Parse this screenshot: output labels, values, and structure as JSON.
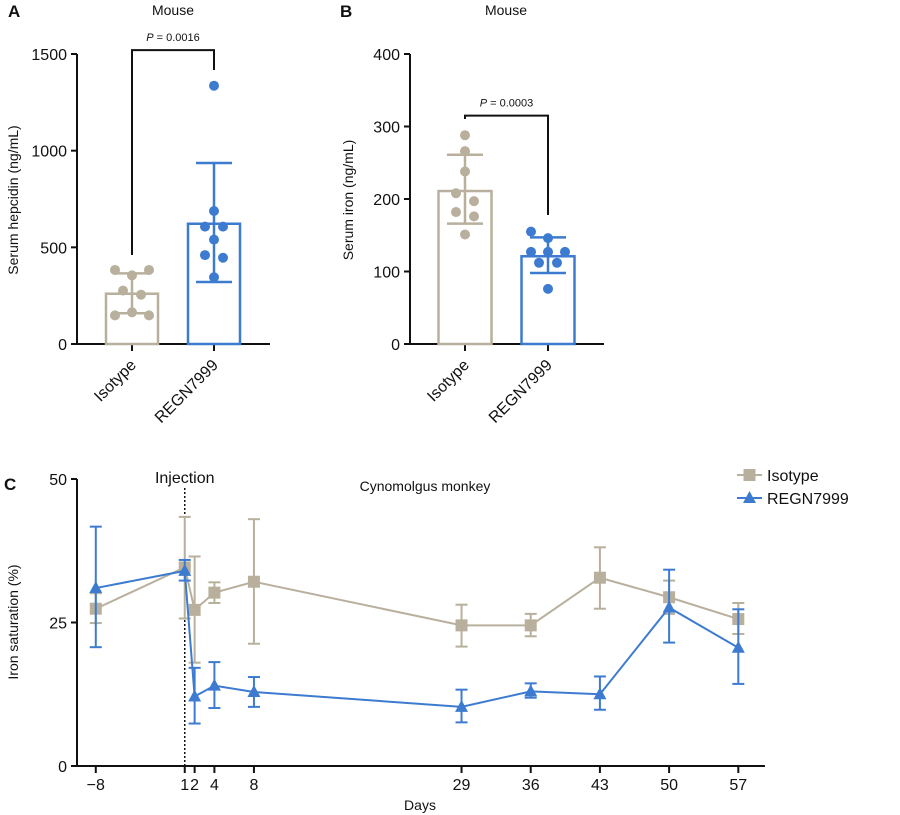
{
  "chart_data": [
    {
      "panel_label": "A",
      "type": "bar",
      "title": "Mouse",
      "xlabel": "",
      "ylabel": "Serum hepcidin (ng/mL)",
      "categories": [
        "Isotype",
        "REGN7999"
      ],
      "ylim": [
        0,
        1500
      ],
      "yticks": [
        0,
        500,
        1000,
        1500
      ],
      "grid": false,
      "bars": [
        {
          "category": "Isotype",
          "mean": 260,
          "sd_upper": 365,
          "sd_lower": 159,
          "points": [
            383,
            383,
            355,
            276,
            255,
            148,
            164,
            148
          ],
          "color": "#b8b09c"
        },
        {
          "category": "REGN7999",
          "mean": 622,
          "sd_upper": 936,
          "sd_lower": 321,
          "points": [
            1336,
            688,
            607,
            607,
            540,
            460,
            446,
            345
          ],
          "color": "#3d7bd0"
        }
      ],
      "annotation": {
        "text": "P = 0.0016",
        "bracket_top": 1520
      }
    },
    {
      "panel_label": "B",
      "type": "bar",
      "title": "Mouse",
      "xlabel": "",
      "ylabel": "Serum iron (ng/mL)",
      "categories": [
        "Isotype",
        "REGN7999"
      ],
      "ylim": [
        0,
        400
      ],
      "yticks": [
        0,
        100,
        200,
        300,
        400
      ],
      "grid": false,
      "bars": [
        {
          "category": "Isotype",
          "mean": 211,
          "sd_upper": 261,
          "sd_lower": 166,
          "points": [
            288,
            266,
            238,
            208,
            197,
            182,
            176,
            151
          ],
          "color": "#b8b09c"
        },
        {
          "category": "REGN7999",
          "mean": 121,
          "sd_upper": 147,
          "sd_lower": 98,
          "points": [
            155,
            146,
            127,
            127,
            127,
            112,
            112,
            76
          ],
          "color": "#3d7bd0"
        }
      ],
      "annotation": {
        "text": "P = 0.0003",
        "bracket_top": 315
      }
    },
    {
      "panel_label": "C",
      "type": "line",
      "title": "Cynomolgus monkey",
      "xlabel": "Days",
      "ylabel": "Iron saturation (%)",
      "x": [
        -8,
        1,
        2,
        4,
        8,
        29,
        36,
        43,
        50,
        57
      ],
      "xtick_labels": [
        "−8",
        "1",
        "2",
        "4",
        "8",
        "29",
        "36",
        "43",
        "50",
        "57"
      ],
      "xlim": [
        -9.9,
        59.7
      ],
      "ylim": [
        0,
        50
      ],
      "yticks": [
        0,
        25,
        50
      ],
      "grid": false,
      "legend_placement": "top-right",
      "vline": {
        "x": 1,
        "label": "Injection",
        "style": "dotted"
      },
      "series": [
        {
          "name": "Isotype",
          "marker": "square",
          "color": "#b8b09c",
          "values": [
            27.4,
            34.6,
            27.2,
            30.2,
            32.1,
            24.5,
            24.5,
            32.8,
            29.4,
            25.6
          ],
          "err_upper": [
            30.1,
            43.4,
            36.5,
            32.0,
            43.0,
            28.1,
            26.5,
            38.1,
            32.3,
            28.4
          ],
          "err_lower": [
            24.9,
            25.7,
            18.0,
            28.4,
            21.3,
            20.8,
            22.6,
            27.4,
            26.5,
            23.0
          ]
        },
        {
          "name": "REGN7999",
          "marker": "triangle",
          "color": "#3d7bd0",
          "values": [
            31.0,
            34.0,
            12.1,
            14.0,
            12.9,
            10.3,
            13.0,
            12.5,
            27.6,
            20.6
          ],
          "err_upper": [
            41.7,
            35.9,
            17.1,
            18.1,
            15.5,
            13.3,
            14.4,
            15.6,
            34.2,
            27.3
          ],
          "err_lower": [
            20.7,
            32.3,
            7.4,
            10.1,
            10.3,
            7.6,
            11.9,
            9.8,
            21.5,
            14.3
          ]
        }
      ]
    }
  ]
}
